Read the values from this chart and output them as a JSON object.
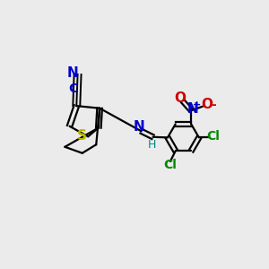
{
  "bg": "#ebebeb",
  "bond_lw": 1.6,
  "S_color": "#b8b800",
  "N_color": "#0000cc",
  "O_color": "#cc0000",
  "Cl_color": "#008800",
  "H_color": "#008888",
  "C_color": "#0000cc",
  "black": "#000000",
  "fs": 10
}
